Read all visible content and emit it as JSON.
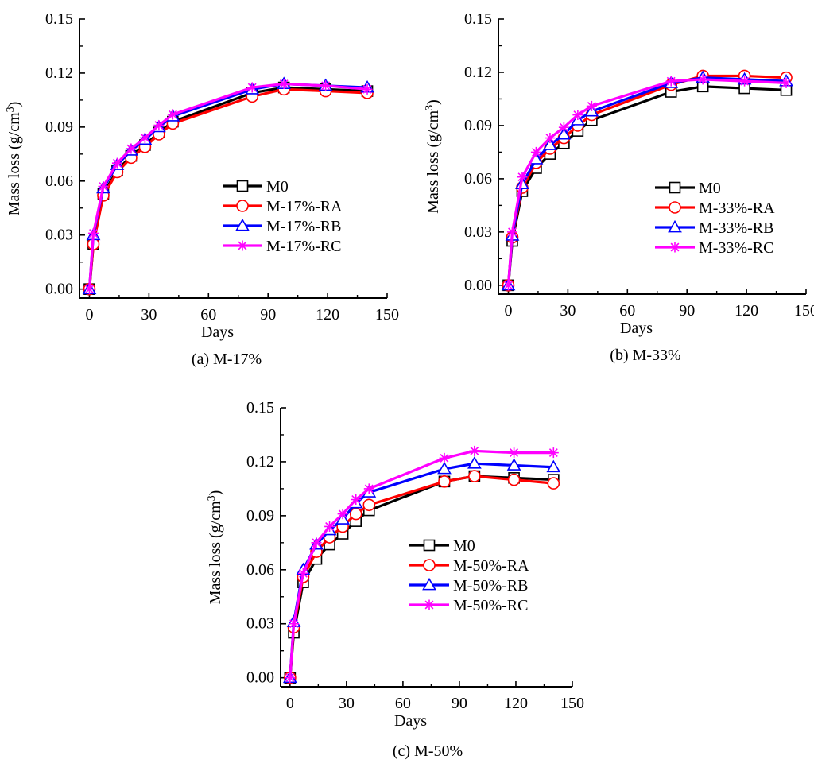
{
  "chart_data": [
    {
      "type": "line",
      "caption": "(a) M-17%",
      "xlabel": "Days",
      "ylabel": "Mass loss (g/cm",
      "ylabel_sup": "3",
      "ylabel_close": ")",
      "xlim": [
        -5,
        150
      ],
      "ylim": [
        -0.005,
        0.15
      ],
      "xticks": [
        0,
        30,
        60,
        90,
        120,
        150
      ],
      "yticks": [
        0.0,
        0.03,
        0.06,
        0.09,
        0.12,
        0.15
      ],
      "legend_position": "center-right",
      "x": [
        0,
        2,
        7,
        14,
        21,
        28,
        35,
        42,
        82,
        98,
        119,
        140
      ],
      "series": [
        {
          "name": "M0",
          "color": "#000000",
          "marker": "square",
          "values": [
            0,
            0.025,
            0.053,
            0.066,
            0.074,
            0.08,
            0.087,
            0.093,
            0.109,
            0.112,
            0.111,
            0.11
          ]
        },
        {
          "name": "M-17%-RA",
          "color": "#ff0000",
          "marker": "circle",
          "values": [
            0,
            0.025,
            0.052,
            0.065,
            0.073,
            0.079,
            0.086,
            0.092,
            0.107,
            0.111,
            0.11,
            0.109
          ]
        },
        {
          "name": "M-17%-RB",
          "color": "#0000ff",
          "marker": "triangle",
          "values": [
            0,
            0.03,
            0.056,
            0.069,
            0.077,
            0.083,
            0.09,
            0.096,
            0.111,
            0.114,
            0.113,
            0.112
          ]
        },
        {
          "name": "M-17%-RC",
          "color": "#ff00ff",
          "marker": "star",
          "values": [
            0,
            0.031,
            0.057,
            0.07,
            0.078,
            0.084,
            0.091,
            0.097,
            0.112,
            0.114,
            0.113,
            0.111
          ]
        }
      ]
    },
    {
      "type": "line",
      "caption": "(b) M-33%",
      "xlabel": "Days",
      "ylabel": "Mass loss (g/cm",
      "ylabel_sup": "3",
      "ylabel_close": ")",
      "xlim": [
        -5,
        150
      ],
      "ylim": [
        -0.005,
        0.15
      ],
      "xticks": [
        0,
        30,
        60,
        90,
        120,
        150
      ],
      "yticks": [
        0.0,
        0.03,
        0.06,
        0.09,
        0.12,
        0.15
      ],
      "legend_position": "bottom-right",
      "x": [
        0,
        2,
        7,
        14,
        21,
        28,
        35,
        42,
        82,
        98,
        119,
        140
      ],
      "series": [
        {
          "name": "M0",
          "color": "#000000",
          "marker": "square",
          "values": [
            0,
            0.025,
            0.053,
            0.066,
            0.074,
            0.08,
            0.087,
            0.093,
            0.109,
            0.112,
            0.111,
            0.11
          ]
        },
        {
          "name": "M-33%-RA",
          "color": "#ff0000",
          "marker": "circle",
          "values": [
            0,
            0.027,
            0.055,
            0.069,
            0.077,
            0.083,
            0.09,
            0.096,
            0.113,
            0.118,
            0.118,
            0.117
          ]
        },
        {
          "name": "M-33%-RB",
          "color": "#0000ff",
          "marker": "triangle",
          "values": [
            0,
            0.028,
            0.057,
            0.071,
            0.079,
            0.085,
            0.093,
            0.098,
            0.114,
            0.117,
            0.116,
            0.115
          ]
        },
        {
          "name": "M-33%-RC",
          "color": "#ff00ff",
          "marker": "star",
          "values": [
            0,
            0.03,
            0.061,
            0.075,
            0.083,
            0.089,
            0.096,
            0.101,
            0.115,
            0.116,
            0.115,
            0.114
          ]
        }
      ]
    },
    {
      "type": "line",
      "caption": "(c) M-50%",
      "xlabel": "Days",
      "ylabel": "Mass loss (g/cm",
      "ylabel_sup": "3",
      "ylabel_close": ")",
      "xlim": [
        -5,
        150
      ],
      "ylim": [
        -0.005,
        0.15
      ],
      "xticks": [
        0,
        30,
        60,
        90,
        120,
        150
      ],
      "yticks": [
        0.0,
        0.03,
        0.06,
        0.09,
        0.12,
        0.15
      ],
      "legend_position": "center-right",
      "x": [
        0,
        2,
        7,
        14,
        21,
        28,
        35,
        42,
        82,
        98,
        119,
        140
      ],
      "series": [
        {
          "name": "M0",
          "color": "#000000",
          "marker": "square",
          "values": [
            0,
            0.025,
            0.053,
            0.066,
            0.074,
            0.08,
            0.087,
            0.093,
            0.109,
            0.112,
            0.111,
            0.11
          ]
        },
        {
          "name": "M-50%-RA",
          "color": "#ff0000",
          "marker": "circle",
          "values": [
            0,
            0.028,
            0.056,
            0.07,
            0.078,
            0.084,
            0.091,
            0.096,
            0.109,
            0.112,
            0.11,
            0.108
          ]
        },
        {
          "name": "M-50%-RB",
          "color": "#0000ff",
          "marker": "triangle",
          "values": [
            0,
            0.031,
            0.06,
            0.074,
            0.082,
            0.088,
            0.097,
            0.103,
            0.116,
            0.119,
            0.118,
            0.117
          ]
        },
        {
          "name": "M-50%-RC",
          "color": "#ff00ff",
          "marker": "star",
          "values": [
            0,
            0.03,
            0.058,
            0.075,
            0.084,
            0.091,
            0.099,
            0.105,
            0.122,
            0.126,
            0.125,
            0.125
          ]
        }
      ]
    }
  ]
}
